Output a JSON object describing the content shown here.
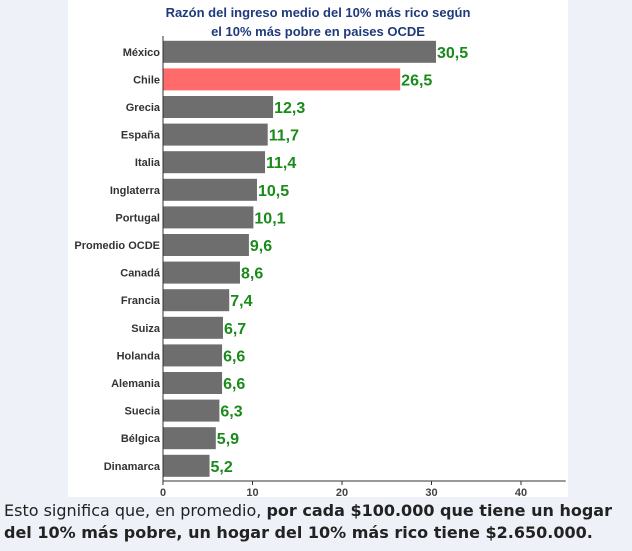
{
  "chart_data": {
    "type": "bar",
    "orientation": "horizontal",
    "title_lines": [
      "Razón del ingreso medio del 10% más rico según",
      "el 10% más pobre en paises OCDE"
    ],
    "categories": [
      "México",
      "Chile",
      "Grecia",
      "España",
      "Italia",
      "Inglaterra",
      "Portugal",
      "Promedio OCDE",
      "Canadá",
      "Francia",
      "Suiza",
      "Holanda",
      "Alemania",
      "Suecia",
      "Bélgica",
      "Dinamarca"
    ],
    "values": [
      30.5,
      26.5,
      12.3,
      11.7,
      11.4,
      10.5,
      10.1,
      9.6,
      8.6,
      7.4,
      6.7,
      6.6,
      6.6,
      6.3,
      5.9,
      5.2
    ],
    "value_labels": [
      "30,5",
      "26,5",
      "12,3",
      "11,7",
      "11,4",
      "10,5",
      "10,1",
      "9,6",
      "8,6",
      "7,4",
      "6,7",
      "6,6",
      "6,6",
      "6,3",
      "5,9",
      "5,2"
    ],
    "highlight_category": "Chile",
    "colors": {
      "bar": "#6e6e6e",
      "highlight": "#ff6b6b",
      "value_label": "#1a8a1a",
      "title": "#1f3a7a"
    },
    "xlim": [
      0,
      45
    ],
    "xticks": [
      0,
      10,
      20,
      30,
      40
    ],
    "grid": false
  },
  "caption": {
    "plain": "Esto significa que, en promedio,  ",
    "bold": "por cada $100.000 que tiene un hogar del 10% más pobre, un hogar del 10% más rico tiene $2.650.000."
  }
}
